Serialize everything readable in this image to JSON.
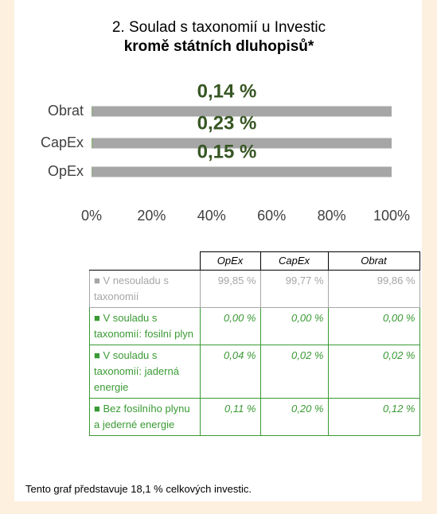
{
  "chart_data": {
    "type": "bar",
    "orientation": "horizontal",
    "stacked": true,
    "title": "2. Soulad s taxonomií u Investic",
    "subtitle": "kromě státních dluhopisů*",
    "categories": [
      "Obrat",
      "CapEx",
      "OpEx"
    ],
    "series": [
      {
        "color": "#70ad47",
        "values": [
          0.14,
          0.23,
          0.15
        ],
        "value_labels": [
          "0,14 %",
          "0,23 %",
          "0,15 %"
        ]
      },
      {
        "color": "#a6a6a6",
        "values": [
          99.86,
          99.77,
          99.85
        ]
      }
    ],
    "label_color": "#375623",
    "xlim": [
      0,
      100
    ],
    "xticks": [
      {
        "value": 0,
        "label": "0%"
      },
      {
        "value": 20,
        "label": "20%"
      },
      {
        "value": 40,
        "label": "40%"
      },
      {
        "value": 60,
        "label": "60%"
      },
      {
        "value": 80,
        "label": "80%"
      },
      {
        "value": 100,
        "label": "100%"
      }
    ],
    "grid": false
  },
  "table": {
    "header": [
      "OpEx",
      "CapEx",
      "Obrat"
    ],
    "rows": [
      [
        "■ V nesouladu s taxonomií",
        "99,85 %",
        "99,77 %",
        "99,86 %"
      ],
      [
        "■ V souladu s taxonomií: fosilní plyn",
        "0,00 %",
        "0,00 %",
        "0,00 %"
      ],
      [
        "■ V souladu s taxonomií: jaderná energie",
        "0,04 %",
        "0,02 %",
        "0,02 %"
      ],
      [
        "■ Bez fosilního plynu a jederné energie",
        "0,11 %",
        "0,20 %",
        "0,12 %"
      ]
    ]
  },
  "footnote": "Tento graf představuje 18,1 % celkových investic."
}
